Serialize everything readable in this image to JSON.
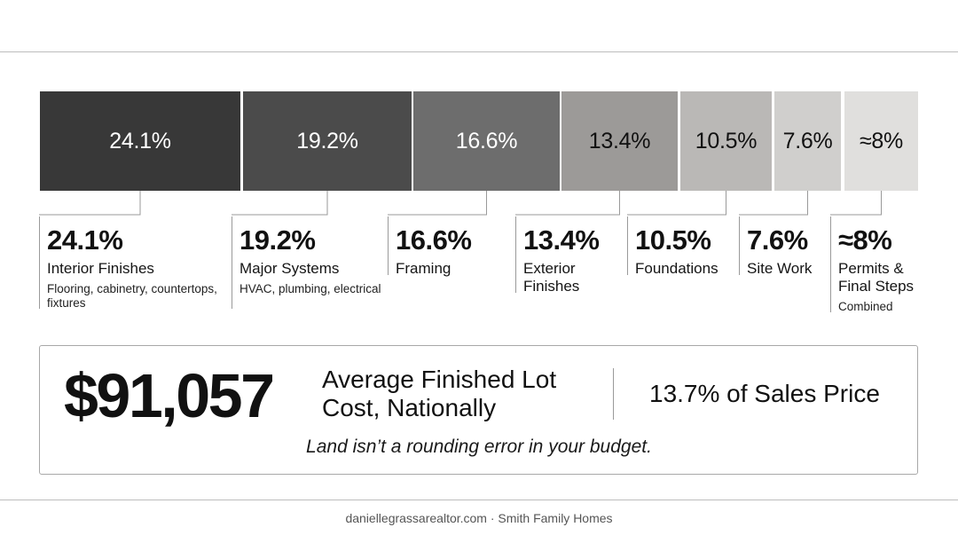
{
  "chart_data": {
    "type": "bar",
    "title": "",
    "categories": [
      "Interior Finishes",
      "Major Systems",
      "Framing",
      "Exterior Finishes",
      "Foundations",
      "Site Work",
      "Permits & Final Steps"
    ],
    "values": [
      24.1,
      19.2,
      16.6,
      13.4,
      10.5,
      7.6,
      8
    ],
    "value_labels": [
      "24.1%",
      "19.2%",
      "16.6%",
      "13.4%",
      "10.5%",
      "7.6%",
      "≈8%"
    ],
    "orientation": "horizontal-stacked",
    "unit": "%",
    "grid": false,
    "legend": "none"
  },
  "segments": [
    {
      "pct": "24.1%",
      "name": "Interior Finishes",
      "sub": "Flooring, cabinetry, countertops, fixtures",
      "fill": "#383838",
      "text": "#ffffff"
    },
    {
      "pct": "19.2%",
      "name": "Major Systems",
      "sub": "HVAC, plumbing, electrical",
      "fill": "#4b4b4b",
      "text": "#ffffff"
    },
    {
      "pct": "16.6%",
      "name": "Framing",
      "sub": "",
      "fill": "#6d6d6d",
      "text": "#ffffff"
    },
    {
      "pct": "13.4%",
      "name": "Exterior Finishes",
      "sub": "",
      "fill": "#9c9a98",
      "text": "#111111"
    },
    {
      "pct": "10.5%",
      "name": "Foundations",
      "sub": "",
      "fill": "#bab8b6",
      "text": "#111111"
    },
    {
      "pct": "7.6%",
      "name": "Site Work",
      "sub": "",
      "fill": "#d0cfcd",
      "text": "#111111"
    },
    {
      "pct": "≈8%",
      "name": "Permits & Final Steps",
      "sub": "Combined",
      "fill": "#e0dfdd",
      "text": "#111111"
    }
  ],
  "callout": {
    "amount": "$91,057",
    "label": "Average Finished Lot Cost, Nationally",
    "share": "13.7% of Sales Price",
    "tagline": "Land isn’t a rounding error in your budget."
  },
  "footer": "daniellegrassarealtor.com · Smith Family Homes"
}
